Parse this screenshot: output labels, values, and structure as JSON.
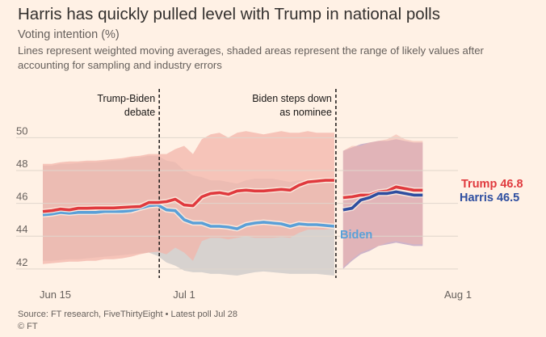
{
  "header": {
    "title": "Harris has quickly pulled level with Trump in national polls",
    "subtitle": "Voting intention (%)",
    "description": "Lines represent weighted moving averages, shaded areas represent the range of likely values after accounting for sampling and industry errors"
  },
  "footer": {
    "source": "Source: FT research, FiveThirtyEight • Latest poll Jul 28",
    "credit": "© FT"
  },
  "chart_data": {
    "type": "line",
    "ylim": [
      41.5,
      51
    ],
    "yticks": [
      42,
      44,
      46,
      48,
      50
    ],
    "xticks": [
      {
        "label": "Jun 15",
        "day": 0
      },
      {
        "label": "Jul 1",
        "day": 16
      },
      {
        "label": "Aug 1",
        "day": 47
      }
    ],
    "xlim": [
      0,
      47
    ],
    "grid": true,
    "annotations": [
      {
        "day": 13,
        "lines": [
          "Trump-Biden",
          "debate"
        ]
      },
      {
        "day": 33,
        "lines": [
          "Biden steps down",
          "as nominee"
        ]
      }
    ],
    "colors": {
      "trump": "#e03a3e",
      "trump_band": "#f3b4a9",
      "biden": "#5aa0d8",
      "biden_band": "#d5d0cd",
      "harris": "#2e4ea0",
      "harris_band": "#c4a9c5",
      "overlap_band": "#dcaaa4",
      "grid": "#e0d6cc",
      "axis_text": "#66605c"
    },
    "series": [
      {
        "name": "Trump",
        "end_label": "Trump 46.8",
        "color": "trump",
        "x": [
          0,
          1,
          2,
          3,
          4,
          5,
          6,
          7,
          8,
          9,
          10,
          11,
          12,
          13,
          14,
          15,
          16,
          17,
          18,
          19,
          20,
          21,
          22,
          23,
          24,
          25,
          26,
          27,
          28,
          29,
          30,
          31,
          32,
          33
        ],
        "y": [
          45.5,
          45.55,
          45.65,
          45.6,
          45.7,
          45.7,
          45.72,
          45.72,
          45.72,
          45.75,
          45.78,
          45.8,
          46.05,
          46.05,
          46.1,
          46.25,
          45.9,
          45.85,
          46.4,
          46.6,
          46.65,
          46.55,
          46.75,
          46.8,
          46.75,
          46.75,
          46.8,
          46.85,
          46.8,
          47.1,
          47.3,
          47.35,
          47.4,
          47.4
        ],
        "x2": [
          34,
          35,
          36,
          37,
          38,
          39,
          40,
          41,
          42,
          43
        ],
        "y2": [
          46.35,
          46.4,
          46.5,
          46.5,
          46.7,
          46.75,
          47.0,
          46.9,
          46.8,
          46.8
        ],
        "upper": [
          48.4,
          48.4,
          48.5,
          48.55,
          48.55,
          48.6,
          48.6,
          48.65,
          48.7,
          48.75,
          48.85,
          48.9,
          49.0,
          49.0,
          49.0,
          49.3,
          49.5,
          49.0,
          49.9,
          50.2,
          50.3,
          50.0,
          50.3,
          50.4,
          50.3,
          50.2,
          50.3,
          50.4,
          50.3,
          50.3,
          50.4,
          50.3,
          50.3,
          50.3
        ],
        "lower": [
          42.3,
          42.35,
          42.4,
          42.45,
          42.45,
          42.5,
          42.5,
          42.6,
          42.6,
          42.65,
          42.75,
          42.9,
          43.0,
          43.05,
          42.9,
          43.3,
          43.0,
          42.5,
          43.7,
          43.9,
          43.9,
          43.8,
          43.9,
          44.0,
          43.9,
          43.9,
          43.9,
          43.95,
          43.9,
          44.2,
          44.4,
          44.4,
          44.4,
          44.5
        ],
        "upper2": [
          49.2,
          49.5,
          49.5,
          49.7,
          49.8,
          49.9,
          50.2,
          49.9,
          49.8,
          49.8
        ],
        "lower2": [
          42.1,
          42.6,
          43.0,
          43.2,
          43.4,
          43.6,
          43.7,
          43.6,
          43.5,
          43.5
        ]
      },
      {
        "name": "Biden",
        "label": "Biden",
        "color": "biden",
        "x": [
          0,
          1,
          2,
          3,
          4,
          5,
          6,
          7,
          8,
          9,
          10,
          11,
          12,
          13,
          14,
          15,
          16,
          17,
          18,
          19,
          20,
          21,
          22,
          23,
          24,
          25,
          26,
          27,
          28,
          29,
          30,
          31,
          32,
          33
        ],
        "y": [
          45.3,
          45.35,
          45.45,
          45.4,
          45.45,
          45.45,
          45.45,
          45.5,
          45.5,
          45.5,
          45.55,
          45.7,
          45.85,
          45.9,
          45.6,
          45.55,
          45.0,
          44.8,
          44.8,
          44.6,
          44.6,
          44.55,
          44.45,
          44.7,
          44.8,
          44.85,
          44.8,
          44.75,
          44.6,
          44.75,
          44.7,
          44.7,
          44.65,
          44.6
        ],
        "upper": [
          48.3,
          48.3,
          48.4,
          48.4,
          48.45,
          48.5,
          48.5,
          48.55,
          48.6,
          48.65,
          48.75,
          48.8,
          48.9,
          48.9,
          48.6,
          48.5,
          48.0,
          47.7,
          47.6,
          47.4,
          47.4,
          47.3,
          47.2,
          47.4,
          47.5,
          47.5,
          47.5,
          47.4,
          47.3,
          47.4,
          47.4,
          47.4,
          47.3,
          47.3
        ],
        "lower": [
          42.5,
          42.5,
          42.55,
          42.6,
          42.6,
          42.65,
          42.7,
          42.75,
          42.8,
          42.85,
          42.9,
          42.95,
          43.0,
          42.8,
          42.4,
          42.2,
          41.9,
          41.8,
          41.8,
          41.7,
          41.7,
          41.65,
          41.6,
          41.7,
          41.8,
          41.85,
          41.8,
          41.75,
          41.7,
          41.7,
          41.7,
          41.7,
          41.65,
          41.6
        ]
      },
      {
        "name": "Harris",
        "end_label": "Harris 46.5",
        "color": "harris",
        "x": [
          34,
          35,
          36,
          37,
          38,
          39,
          40,
          41,
          42,
          43
        ],
        "y": [
          45.6,
          45.7,
          46.2,
          46.35,
          46.6,
          46.6,
          46.7,
          46.6,
          46.5,
          46.5
        ],
        "upper": [
          49.2,
          49.4,
          49.6,
          49.7,
          49.8,
          49.8,
          49.9,
          49.8,
          49.7,
          49.7
        ],
        "lower": [
          42.0,
          42.5,
          42.9,
          43.1,
          43.4,
          43.5,
          43.6,
          43.5,
          43.4,
          43.4
        ]
      }
    ]
  }
}
